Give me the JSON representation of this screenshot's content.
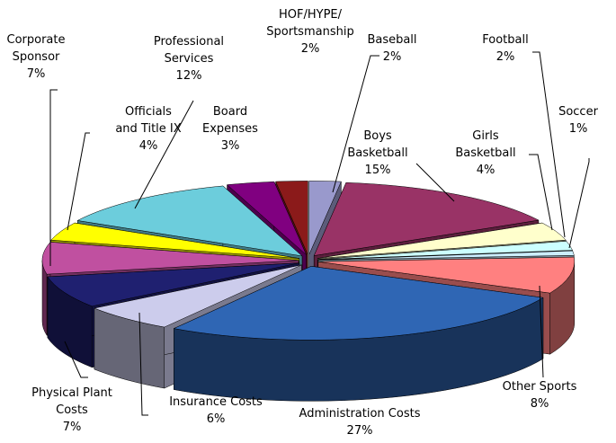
{
  "chart_data": {
    "type": "pie3d",
    "categories": [
      "Baseball",
      "Boys\nBasketball",
      "Girls\nBasketball",
      "Football",
      "Soccer",
      "Other Sports",
      "Administration Costs",
      "Insurance Costs",
      "Physical Plant\nCosts",
      "Corporate\nSponsor",
      "Officials\nand Title IX",
      "Professional\nServices",
      "Board\nExpenses",
      "HOF/HYPE/\nSportsmanship"
    ],
    "values": [
      2,
      15,
      4,
      2,
      1,
      8,
      27,
      6,
      7,
      7,
      4,
      12,
      3,
      2
    ],
    "value_labels": [
      "2%",
      "15%",
      "4%",
      "2%",
      "1%",
      "8%",
      "27%",
      "6%",
      "7%",
      "7%",
      "4%",
      "12%",
      "3%",
      "2%"
    ],
    "colors": [
      "#9999cc",
      "#993366",
      "#ffffcc",
      "#ccffff",
      "#cceeff",
      "#ff8080",
      "#2f66b4",
      "#ccccec",
      "#1f2070",
      "#c050a0",
      "#ffff00",
      "#6ccddc",
      "#800080",
      "#8b1a1a"
    ]
  }
}
